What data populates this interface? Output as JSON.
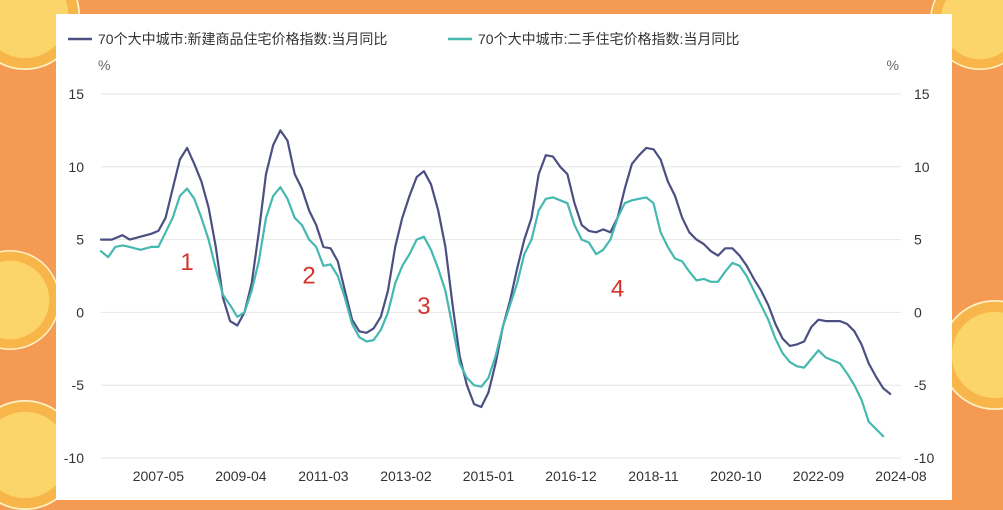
{
  "colors": {
    "background": "#f59a52",
    "series_new": "#4b4f82",
    "series_second": "#45b8b0",
    "annotation": "#d4332b",
    "grid": "#e6e6e6"
  },
  "chart_data": {
    "type": "line",
    "legend_position": "top-left",
    "grid": true,
    "y_unit_left": "%",
    "y_unit_right": "%",
    "ylim": [
      -10,
      15
    ],
    "yticks": [
      15,
      10,
      5,
      0,
      -5,
      -10
    ],
    "xlim": [
      "2006-01",
      "2024-08"
    ],
    "x_tick_labels": [
      "2007-05",
      "2009-04",
      "2011-03",
      "2013-02",
      "2015-01",
      "2016-12",
      "2018-11",
      "2020-10",
      "2022-09",
      "2024-08"
    ],
    "series": [
      {
        "name": "70个大中城市:新建商品住宅价格指数:当月同比",
        "color": "#4b4f82",
        "points": [
          [
            "2006-01",
            5.0
          ],
          [
            "2006-04",
            5.0
          ],
          [
            "2006-07",
            5.3
          ],
          [
            "2006-09",
            5.0
          ],
          [
            "2006-12",
            5.2
          ],
          [
            "2007-03",
            5.4
          ],
          [
            "2007-05",
            5.6
          ],
          [
            "2007-07",
            6.5
          ],
          [
            "2007-09",
            8.5
          ],
          [
            "2007-11",
            10.5
          ],
          [
            "2008-01",
            11.3
          ],
          [
            "2008-03",
            10.2
          ],
          [
            "2008-05",
            9.0
          ],
          [
            "2008-07",
            7.2
          ],
          [
            "2008-09",
            4.5
          ],
          [
            "2008-11",
            1.0
          ],
          [
            "2009-01",
            -0.6
          ],
          [
            "2009-03",
            -0.9
          ],
          [
            "2009-05",
            0.0
          ],
          [
            "2009-07",
            2.0
          ],
          [
            "2009-09",
            5.5
          ],
          [
            "2009-11",
            9.5
          ],
          [
            "2010-01",
            11.5
          ],
          [
            "2010-03",
            12.5
          ],
          [
            "2010-05",
            11.8
          ],
          [
            "2010-07",
            9.5
          ],
          [
            "2010-09",
            8.5
          ],
          [
            "2010-11",
            7.0
          ],
          [
            "2011-01",
            6.0
          ],
          [
            "2011-03",
            4.5
          ],
          [
            "2011-05",
            4.4
          ],
          [
            "2011-07",
            3.5
          ],
          [
            "2011-09",
            1.5
          ],
          [
            "2011-11",
            -0.5
          ],
          [
            "2012-01",
            -1.3
          ],
          [
            "2012-03",
            -1.4
          ],
          [
            "2012-05",
            -1.1
          ],
          [
            "2012-07",
            -0.3
          ],
          [
            "2012-09",
            1.5
          ],
          [
            "2012-11",
            4.5
          ],
          [
            "2013-01",
            6.5
          ],
          [
            "2013-03",
            8.0
          ],
          [
            "2013-05",
            9.3
          ],
          [
            "2013-07",
            9.7
          ],
          [
            "2013-09",
            8.8
          ],
          [
            "2013-11",
            7.0
          ],
          [
            "2014-01",
            4.5
          ],
          [
            "2014-03",
            0.5
          ],
          [
            "2014-05",
            -3.0
          ],
          [
            "2014-07",
            -5.0
          ],
          [
            "2014-09",
            -6.3
          ],
          [
            "2014-11",
            -6.5
          ],
          [
            "2015-01",
            -5.5
          ],
          [
            "2015-03",
            -3.5
          ],
          [
            "2015-05",
            -1.0
          ],
          [
            "2015-07",
            0.8
          ],
          [
            "2015-09",
            3.0
          ],
          [
            "2015-11",
            5.0
          ],
          [
            "2016-01",
            6.5
          ],
          [
            "2016-03",
            9.5
          ],
          [
            "2016-05",
            10.8
          ],
          [
            "2016-07",
            10.7
          ],
          [
            "2016-09",
            10.0
          ],
          [
            "2016-11",
            9.5
          ],
          [
            "2017-01",
            7.5
          ],
          [
            "2017-03",
            6.0
          ],
          [
            "2017-05",
            5.6
          ],
          [
            "2017-07",
            5.5
          ],
          [
            "2017-09",
            5.7
          ],
          [
            "2017-11",
            5.5
          ],
          [
            "2018-01",
            6.5
          ],
          [
            "2018-03",
            8.5
          ],
          [
            "2018-05",
            10.2
          ],
          [
            "2018-07",
            10.8
          ],
          [
            "2018-09",
            11.3
          ],
          [
            "2018-11",
            11.2
          ],
          [
            "2019-01",
            10.5
          ],
          [
            "2019-03",
            9.0
          ],
          [
            "2019-05",
            8.0
          ],
          [
            "2019-07",
            6.5
          ],
          [
            "2019-09",
            5.5
          ],
          [
            "2019-11",
            5.0
          ],
          [
            "2020-01",
            4.7
          ],
          [
            "2020-03",
            4.2
          ],
          [
            "2020-05",
            3.9
          ],
          [
            "2020-07",
            4.4
          ],
          [
            "2020-09",
            4.4
          ],
          [
            "2020-11",
            3.9
          ],
          [
            "2021-01",
            3.2
          ],
          [
            "2021-03",
            2.3
          ],
          [
            "2021-05",
            1.5
          ],
          [
            "2021-07",
            0.5
          ],
          [
            "2021-09",
            -0.8
          ],
          [
            "2021-11",
            -1.8
          ],
          [
            "2022-01",
            -2.3
          ],
          [
            "2022-03",
            -2.2
          ],
          [
            "2022-05",
            -2.0
          ],
          [
            "2022-07",
            -1.0
          ],
          [
            "2022-09",
            -0.5
          ],
          [
            "2022-11",
            -0.6
          ],
          [
            "2023-01",
            -0.6
          ],
          [
            "2023-03",
            -0.6
          ],
          [
            "2023-05",
            -0.8
          ],
          [
            "2023-07",
            -1.3
          ],
          [
            "2023-09",
            -2.2
          ],
          [
            "2023-11",
            -3.5
          ],
          [
            "2024-01",
            -4.4
          ],
          [
            "2024-03",
            -5.2
          ],
          [
            "2024-05",
            -5.6
          ]
        ]
      },
      {
        "name": "70个大中城市:二手住宅价格指数:当月同比",
        "color": "#45b8b0",
        "points": [
          [
            "2006-01",
            4.2
          ],
          [
            "2006-03",
            3.8
          ],
          [
            "2006-05",
            4.5
          ],
          [
            "2006-07",
            4.6
          ],
          [
            "2006-09",
            4.5
          ],
          [
            "2006-12",
            4.3
          ],
          [
            "2007-03",
            4.5
          ],
          [
            "2007-05",
            4.5
          ],
          [
            "2007-07",
            5.5
          ],
          [
            "2007-09",
            6.5
          ],
          [
            "2007-11",
            8.0
          ],
          [
            "2008-01",
            8.5
          ],
          [
            "2008-03",
            7.8
          ],
          [
            "2008-05",
            6.5
          ],
          [
            "2008-07",
            5.0
          ],
          [
            "2008-09",
            3.0
          ],
          [
            "2008-11",
            1.2
          ],
          [
            "2009-01",
            0.5
          ],
          [
            "2009-03",
            -0.3
          ],
          [
            "2009-05",
            0.0
          ],
          [
            "2009-07",
            1.5
          ],
          [
            "2009-09",
            3.5
          ],
          [
            "2009-11",
            6.5
          ],
          [
            "2010-01",
            8.0
          ],
          [
            "2010-03",
            8.6
          ],
          [
            "2010-05",
            7.8
          ],
          [
            "2010-07",
            6.5
          ],
          [
            "2010-09",
            6.0
          ],
          [
            "2010-11",
            5.0
          ],
          [
            "2011-01",
            4.5
          ],
          [
            "2011-03",
            3.2
          ],
          [
            "2011-05",
            3.3
          ],
          [
            "2011-07",
            2.5
          ],
          [
            "2011-09",
            1.0
          ],
          [
            "2011-11",
            -0.8
          ],
          [
            "2012-01",
            -1.7
          ],
          [
            "2012-03",
            -2.0
          ],
          [
            "2012-05",
            -1.9
          ],
          [
            "2012-07",
            -1.2
          ],
          [
            "2012-09",
            0.0
          ],
          [
            "2012-11",
            2.0
          ],
          [
            "2013-01",
            3.2
          ],
          [
            "2013-03",
            4.0
          ],
          [
            "2013-05",
            5.0
          ],
          [
            "2013-07",
            5.2
          ],
          [
            "2013-09",
            4.3
          ],
          [
            "2013-11",
            3.0
          ],
          [
            "2014-01",
            1.5
          ],
          [
            "2014-03",
            -1.0
          ],
          [
            "2014-05",
            -3.5
          ],
          [
            "2014-07",
            -4.5
          ],
          [
            "2014-09",
            -5.0
          ],
          [
            "2014-11",
            -5.1
          ],
          [
            "2015-01",
            -4.5
          ],
          [
            "2015-03",
            -3.0
          ],
          [
            "2015-05",
            -1.0
          ],
          [
            "2015-07",
            0.5
          ],
          [
            "2015-09",
            2.0
          ],
          [
            "2015-11",
            4.0
          ],
          [
            "2016-01",
            5.0
          ],
          [
            "2016-03",
            7.0
          ],
          [
            "2016-05",
            7.8
          ],
          [
            "2016-07",
            7.9
          ],
          [
            "2016-09",
            7.7
          ],
          [
            "2016-11",
            7.5
          ],
          [
            "2017-01",
            6.0
          ],
          [
            "2017-03",
            5.0
          ],
          [
            "2017-05",
            4.8
          ],
          [
            "2017-07",
            4.0
          ],
          [
            "2017-09",
            4.3
          ],
          [
            "2017-11",
            5.0
          ],
          [
            "2018-01",
            6.5
          ],
          [
            "2018-03",
            7.5
          ],
          [
            "2018-05",
            7.7
          ],
          [
            "2018-07",
            7.8
          ],
          [
            "2018-09",
            7.9
          ],
          [
            "2018-11",
            7.5
          ],
          [
            "2019-01",
            5.5
          ],
          [
            "2019-03",
            4.5
          ],
          [
            "2019-05",
            3.7
          ],
          [
            "2019-07",
            3.5
          ],
          [
            "2019-09",
            2.8
          ],
          [
            "2019-11",
            2.2
          ],
          [
            "2020-01",
            2.3
          ],
          [
            "2020-03",
            2.1
          ],
          [
            "2020-05",
            2.1
          ],
          [
            "2020-07",
            2.8
          ],
          [
            "2020-09",
            3.4
          ],
          [
            "2020-11",
            3.2
          ],
          [
            "2021-01",
            2.5
          ],
          [
            "2021-03",
            1.5
          ],
          [
            "2021-05",
            0.5
          ],
          [
            "2021-07",
            -0.5
          ],
          [
            "2021-09",
            -1.8
          ],
          [
            "2021-11",
            -2.8
          ],
          [
            "2022-01",
            -3.4
          ],
          [
            "2022-03",
            -3.7
          ],
          [
            "2022-05",
            -3.8
          ],
          [
            "2022-07",
            -3.2
          ],
          [
            "2022-09",
            -2.6
          ],
          [
            "2022-11",
            -3.1
          ],
          [
            "2023-01",
            -3.3
          ],
          [
            "2023-03",
            -3.5
          ],
          [
            "2023-05",
            -4.2
          ],
          [
            "2023-07",
            -5.0
          ],
          [
            "2023-09",
            -6.0
          ],
          [
            "2023-11",
            -7.5
          ],
          [
            "2024-01",
            -8.0
          ],
          [
            "2024-03",
            -8.5
          ]
        ]
      }
    ],
    "annotations": [
      {
        "text": "1",
        "x": "2008-01",
        "y": 2.9
      },
      {
        "text": "2",
        "x": "2010-11",
        "y": 2.0
      },
      {
        "text": "3",
        "x": "2013-07",
        "y": -0.1
      },
      {
        "text": "4",
        "x": "2018-01",
        "y": 1.1
      }
    ]
  }
}
